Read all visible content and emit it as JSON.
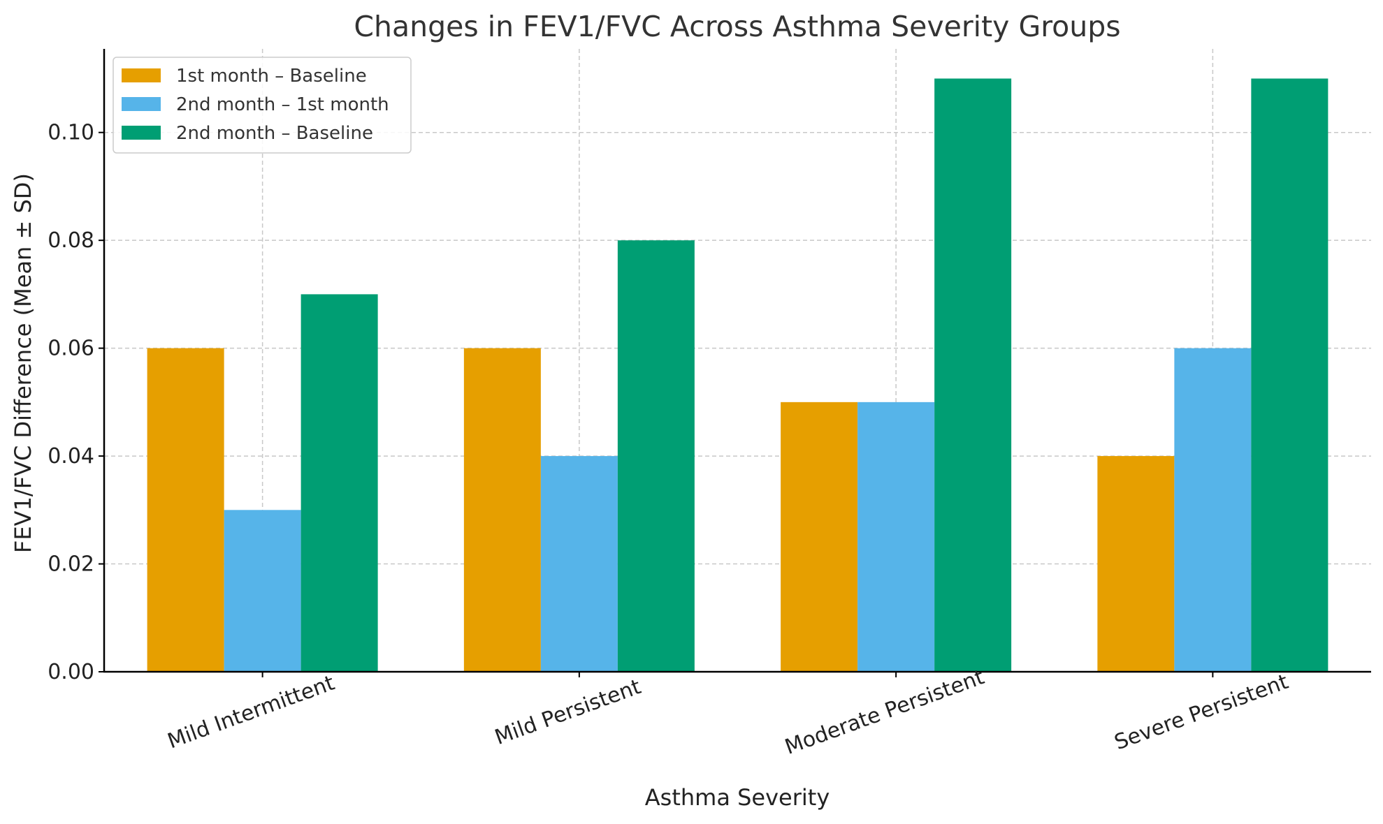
{
  "chart_data": {
    "type": "bar",
    "title": "Changes in FEV1/FVC Across Asthma Severity Groups",
    "xlabel": "Asthma Severity",
    "ylabel": "FEV1/FVC Difference (Mean ± SD)",
    "categories": [
      "Mild Intermittent",
      "Mild Persistent",
      "Moderate Persistent",
      "Severe Persistent"
    ],
    "series": [
      {
        "name": "1st month – Baseline",
        "color": "#E69F00",
        "values": [
          0.06,
          0.06,
          0.05,
          0.04
        ]
      },
      {
        "name": "2nd month – 1st month",
        "color": "#56B4E9",
        "values": [
          0.03,
          0.04,
          0.05,
          0.06
        ]
      },
      {
        "name": "2nd month – Baseline",
        "color": "#009E73",
        "values": [
          0.07,
          0.08,
          0.11,
          0.11
        ]
      }
    ],
    "yticks": [
      "0.00",
      "0.02",
      "0.04",
      "0.06",
      "0.08",
      "0.10"
    ],
    "ylim": [
      0,
      0.1155
    ],
    "grid": true,
    "legend_position": "top-left"
  }
}
